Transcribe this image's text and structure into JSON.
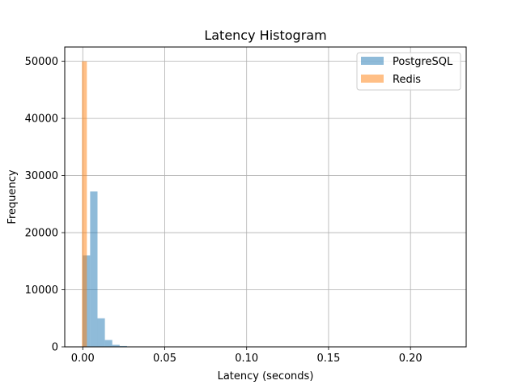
{
  "chart_data": {
    "type": "bar",
    "subtype": "histogram-overlay",
    "title": "Latency Histogram",
    "xlabel": "Latency (seconds)",
    "ylabel": "Frequency",
    "xlim": [
      -0.011,
      0.234
    ],
    "ylim": [
      0,
      52500
    ],
    "xticks": [
      0.0,
      0.05,
      0.1,
      0.15,
      0.2
    ],
    "xtick_labels": [
      "0.00",
      "0.05",
      "0.10",
      "0.15",
      "0.20"
    ],
    "yticks": [
      0,
      10000,
      20000,
      30000,
      40000,
      50000
    ],
    "ytick_labels": [
      "0",
      "10000",
      "20000",
      "30000",
      "40000",
      "50000"
    ],
    "grid": true,
    "legend_position": "top-right",
    "series": [
      {
        "name": "PostgreSQL",
        "color": "#1f77b4",
        "alpha": 0.5,
        "bins": [
          {
            "x0": 0.0,
            "x1": 0.0045,
            "count": 16000
          },
          {
            "x0": 0.0045,
            "x1": 0.009,
            "count": 27200
          },
          {
            "x0": 0.009,
            "x1": 0.0135,
            "count": 5000
          },
          {
            "x0": 0.0135,
            "x1": 0.018,
            "count": 1200
          },
          {
            "x0": 0.018,
            "x1": 0.0225,
            "count": 350
          },
          {
            "x0": 0.0225,
            "x1": 0.027,
            "count": 150
          },
          {
            "x0": 0.027,
            "x1": 0.0315,
            "count": 60
          },
          {
            "x0": 0.0315,
            "x1": 0.036,
            "count": 25
          }
        ]
      },
      {
        "name": "Redis",
        "color": "#ff7f0e",
        "alpha": 0.5,
        "bins": [
          {
            "x0": -0.0005,
            "x1": 0.0025,
            "count": 50000
          },
          {
            "x0": 0.0025,
            "x1": 0.003,
            "count": 15
          }
        ]
      }
    ]
  }
}
